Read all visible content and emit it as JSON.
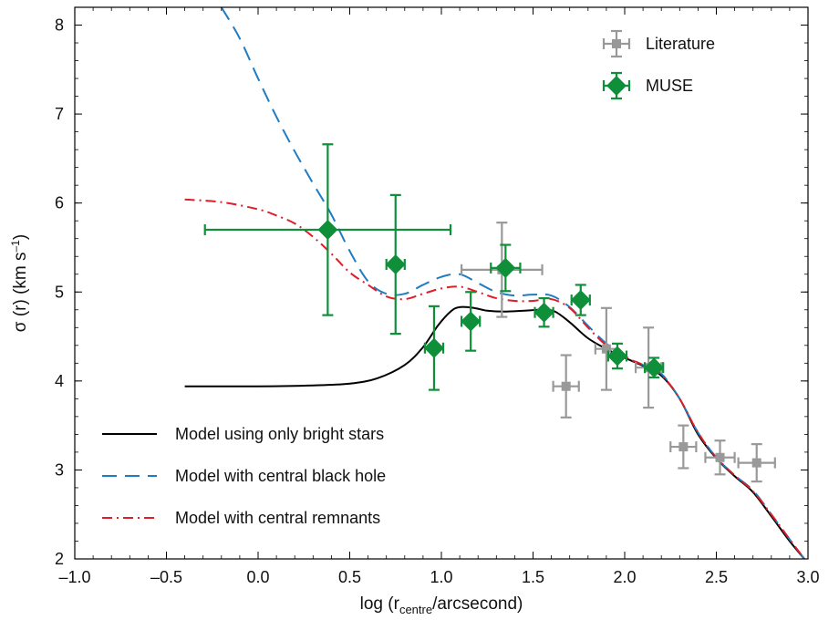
{
  "chart_data": {
    "type": "scatter",
    "xlabel_main": "log (r",
    "xlabel_sub": "centre",
    "xlabel_tail": "/arcsecond)",
    "ylabel_main": "σ (r) (km s",
    "ylabel_sup": "–1",
    "ylabel_tail": ")",
    "xlim": [
      -1.0,
      3.0
    ],
    "ylim": [
      2,
      8.2
    ],
    "xticks": [
      -1.0,
      -0.5,
      0.0,
      0.5,
      1.0,
      1.5,
      2.0,
      2.5,
      3.0
    ],
    "xtick_labels": [
      "–1.0",
      "–0.5",
      "0.0",
      "0.5",
      "1.0",
      "1.5",
      "2.0",
      "2.5",
      "3.0"
    ],
    "yticks": [
      2,
      3,
      4,
      5,
      6,
      7,
      8
    ],
    "ytick_labels": [
      "2",
      "3",
      "4",
      "5",
      "6",
      "7",
      "8"
    ],
    "grid": false,
    "series": [
      {
        "name": "Literature",
        "kind": "points",
        "marker": "square",
        "color": "#999999",
        "points": [
          {
            "x": 1.33,
            "y": 5.25,
            "xerr": 0.22,
            "yerr": 0.53
          },
          {
            "x": 1.68,
            "y": 3.94,
            "xerr": 0.07,
            "yerr": 0.35
          },
          {
            "x": 1.9,
            "y": 4.36,
            "xerr": 0.06,
            "yerr": 0.46
          },
          {
            "x": 2.13,
            "y": 4.15,
            "xerr": 0.07,
            "yerr": 0.45
          },
          {
            "x": 2.32,
            "y": 3.26,
            "xerr": 0.07,
            "yerr": 0.24
          },
          {
            "x": 2.52,
            "y": 3.14,
            "xerr": 0.08,
            "yerr": 0.19
          },
          {
            "x": 2.72,
            "y": 3.08,
            "xerr": 0.1,
            "yerr": 0.21
          }
        ]
      },
      {
        "name": "MUSE",
        "kind": "points",
        "marker": "diamond",
        "color": "#0f8f3a",
        "points": [
          {
            "x": 0.38,
            "y": 5.7,
            "xerr": 0.67,
            "yerr": 0.96
          },
          {
            "x": 0.75,
            "y": 5.31,
            "xerr": 0.05,
            "yerr": 0.78
          },
          {
            "x": 0.96,
            "y": 4.37,
            "xerr": 0.05,
            "yerr": 0.47
          },
          {
            "x": 1.16,
            "y": 4.67,
            "xerr": 0.05,
            "yerr": 0.33
          },
          {
            "x": 1.35,
            "y": 5.27,
            "xerr": 0.08,
            "yerr": 0.26
          },
          {
            "x": 1.56,
            "y": 4.77,
            "xerr": 0.05,
            "yerr": 0.16
          },
          {
            "x": 1.76,
            "y": 4.91,
            "xerr": 0.05,
            "yerr": 0.17
          },
          {
            "x": 1.96,
            "y": 4.28,
            "xerr": 0.05,
            "yerr": 0.14
          },
          {
            "x": 2.16,
            "y": 4.15,
            "xerr": 0.05,
            "yerr": 0.11
          }
        ]
      },
      {
        "name": "Model using only bright stars",
        "kind": "line",
        "style": "solid",
        "color": "#000000",
        "x": [
          -0.4,
          0.0,
          0.3,
          0.5,
          0.65,
          0.8,
          0.9,
          0.98,
          1.05,
          1.1,
          1.18,
          1.25,
          1.35,
          1.45,
          1.55,
          1.62,
          1.7,
          1.8,
          1.9,
          2.0,
          2.1,
          2.2,
          2.3,
          2.4,
          2.5,
          2.6,
          2.7,
          2.8,
          2.9,
          2.98
        ],
        "y": [
          3.94,
          3.94,
          3.95,
          3.97,
          4.03,
          4.18,
          4.38,
          4.62,
          4.78,
          4.83,
          4.82,
          4.79,
          4.78,
          4.79,
          4.8,
          4.78,
          4.66,
          4.48,
          4.36,
          4.26,
          4.17,
          4.06,
          3.8,
          3.4,
          3.13,
          2.93,
          2.75,
          2.48,
          2.2,
          2.0
        ]
      },
      {
        "name": "Model with central black hole",
        "kind": "line",
        "style": "dashed",
        "color": "#1f7cc2",
        "x": [
          -0.2,
          -0.1,
          0.0,
          0.1,
          0.2,
          0.3,
          0.4,
          0.5,
          0.6,
          0.7,
          0.8,
          0.9,
          1.0,
          1.1,
          1.2,
          1.3,
          1.4,
          1.5,
          1.6,
          1.7,
          1.8,
          1.9,
          2.0,
          2.1,
          2.2,
          2.3,
          2.4,
          2.5,
          2.6,
          2.7,
          2.8,
          2.9,
          2.98
        ],
        "y": [
          8.2,
          7.85,
          7.4,
          6.97,
          6.58,
          6.22,
          5.87,
          5.46,
          5.12,
          4.98,
          4.98,
          5.08,
          5.17,
          5.2,
          5.1,
          5.0,
          4.96,
          4.97,
          4.96,
          4.83,
          4.62,
          4.42,
          4.28,
          4.18,
          4.08,
          3.8,
          3.42,
          3.14,
          2.94,
          2.77,
          2.5,
          2.22,
          2.0
        ]
      },
      {
        "name": "Model with central remnants",
        "kind": "line",
        "style": "dashdot",
        "color": "#dd1f2a",
        "x": [
          -0.4,
          -0.2,
          0.0,
          0.1,
          0.2,
          0.3,
          0.4,
          0.5,
          0.6,
          0.7,
          0.8,
          0.9,
          1.0,
          1.1,
          1.2,
          1.3,
          1.4,
          1.5,
          1.6,
          1.7,
          1.8,
          1.9,
          2.0,
          2.1,
          2.2,
          2.3,
          2.4,
          2.5,
          2.6,
          2.7,
          2.8,
          2.9,
          2.98
        ],
        "y": [
          6.04,
          6.01,
          5.93,
          5.86,
          5.77,
          5.62,
          5.43,
          5.22,
          5.08,
          4.95,
          4.92,
          4.98,
          5.04,
          5.06,
          5.0,
          4.93,
          4.9,
          4.9,
          4.92,
          4.82,
          4.6,
          4.4,
          4.27,
          4.18,
          4.07,
          3.8,
          3.42,
          3.14,
          2.94,
          2.76,
          2.5,
          2.22,
          2.0
        ]
      }
    ],
    "legend_top": [
      {
        "label": "Literature",
        "series": "Literature"
      },
      {
        "label": "MUSE",
        "series": "MUSE"
      }
    ],
    "legend_bottom": [
      {
        "label": "Model using only bright stars",
        "series": "Model using only bright stars"
      },
      {
        "label": "Model with central black hole",
        "series": "Model with central black hole"
      },
      {
        "label": "Model with central remnants",
        "series": "Model with central remnants"
      }
    ],
    "legend_top_position": "top-right",
    "legend_bottom_position": "bottom-left"
  }
}
